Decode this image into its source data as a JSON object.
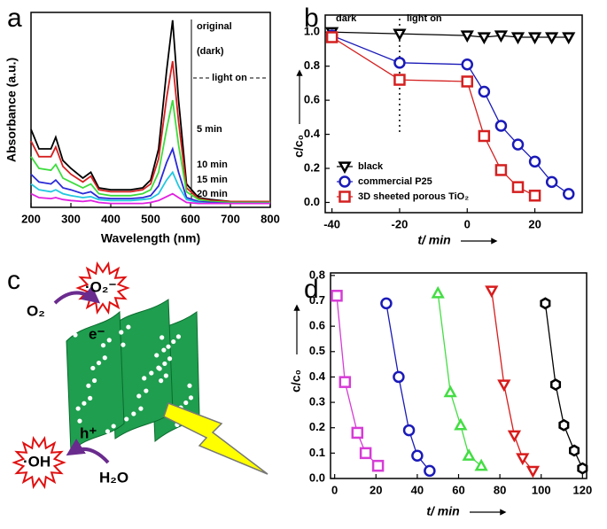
{
  "chart_data": [
    {
      "type": "line",
      "panel": "a",
      "x_label": "Wavelength (nm)",
      "y_label": "Absorbance (a.u.)",
      "x": [
        200,
        220,
        250,
        262,
        280,
        300,
        330,
        350,
        370,
        400,
        450,
        480,
        500,
        520,
        540,
        555,
        570,
        590,
        620,
        650,
        700,
        750,
        800
      ],
      "xlim": [
        200,
        800
      ],
      "xticks": [
        200,
        300,
        400,
        500,
        600,
        700,
        800
      ],
      "ylim": [
        0,
        1
      ],
      "annotation": "light on",
      "series": [
        {
          "name": "original",
          "color": "#000000",
          "values": [
            0.4,
            0.3,
            0.3,
            0.36,
            0.24,
            0.2,
            0.15,
            0.18,
            0.1,
            0.09,
            0.09,
            0.1,
            0.14,
            0.3,
            0.7,
            0.96,
            0.55,
            0.12,
            0.05,
            0.04,
            0.03,
            0.03,
            0.03
          ]
        },
        {
          "name": "(dark)",
          "color": "#d62020",
          "values": [
            0.34,
            0.26,
            0.26,
            0.31,
            0.21,
            0.17,
            0.13,
            0.16,
            0.09,
            0.08,
            0.08,
            0.09,
            0.12,
            0.25,
            0.56,
            0.75,
            0.44,
            0.1,
            0.045,
            0.035,
            0.03,
            0.03,
            0.03
          ]
        },
        {
          "name": "5 min",
          "color": "#3ddc3d",
          "values": [
            0.26,
            0.2,
            0.19,
            0.22,
            0.15,
            0.13,
            0.1,
            0.12,
            0.07,
            0.06,
            0.06,
            0.07,
            0.09,
            0.18,
            0.4,
            0.55,
            0.32,
            0.08,
            0.04,
            0.03,
            0.025,
            0.025,
            0.025
          ]
        },
        {
          "name": "10 min",
          "color": "#2a2ad8",
          "values": [
            0.17,
            0.13,
            0.12,
            0.14,
            0.1,
            0.09,
            0.07,
            0.08,
            0.05,
            0.045,
            0.045,
            0.05,
            0.06,
            0.11,
            0.23,
            0.3,
            0.18,
            0.05,
            0.03,
            0.025,
            0.02,
            0.02,
            0.02
          ]
        },
        {
          "name": "15 min",
          "color": "#22c8e0",
          "values": [
            0.12,
            0.09,
            0.08,
            0.09,
            0.07,
            0.06,
            0.05,
            0.055,
            0.04,
            0.035,
            0.035,
            0.04,
            0.045,
            0.07,
            0.14,
            0.18,
            0.11,
            0.04,
            0.025,
            0.02,
            0.02,
            0.02,
            0.02
          ]
        },
        {
          "name": "20 min",
          "color": "#e020e0",
          "values": [
            0.07,
            0.05,
            0.045,
            0.05,
            0.04,
            0.035,
            0.03,
            0.035,
            0.025,
            0.02,
            0.02,
            0.02,
            0.025,
            0.035,
            0.055,
            0.07,
            0.05,
            0.025,
            0.02,
            0.02,
            0.02,
            0.02,
            0.02
          ]
        }
      ]
    },
    {
      "type": "line",
      "panel": "b",
      "x_label": "t/ min",
      "y_label": "c/c₀",
      "xlim": [
        -42,
        34
      ],
      "xticks": [
        -40,
        -20,
        0,
        20
      ],
      "ylim": [
        -0.06,
        1.1
      ],
      "yticks": [
        {
          "value": 0,
          "label": "0.0"
        },
        0.2,
        0.4,
        0.6,
        0.8,
        {
          "value": 1,
          "label": "1.0"
        }
      ],
      "annotations": [
        "dark",
        "light on"
      ],
      "divider_x": -20,
      "legend": true,
      "series": [
        {
          "name": "black",
          "color": "#000000",
          "marker": "triangle-down",
          "x": [
            -40,
            -20,
            0,
            5,
            10,
            15,
            20,
            25,
            30
          ],
          "values": [
            1.0,
            0.99,
            0.98,
            0.97,
            0.98,
            0.97,
            0.97,
            0.97,
            0.97
          ]
        },
        {
          "name": "commercial P25",
          "color": "#1a1ab8",
          "marker": "circle",
          "x": [
            -40,
            -20,
            0,
            5,
            10,
            15,
            20,
            25,
            30
          ],
          "values": [
            0.98,
            0.82,
            0.81,
            0.65,
            0.45,
            0.34,
            0.24,
            0.12,
            0.05
          ]
        },
        {
          "name": "3D sheeted porous TiO₂",
          "color": "#d42020",
          "marker": "square",
          "x": [
            -40,
            -20,
            0,
            5,
            10,
            15,
            20
          ],
          "values": [
            0.97,
            0.72,
            0.71,
            0.39,
            0.19,
            0.09,
            0.04
          ]
        }
      ]
    },
    {
      "type": "line",
      "panel": "d",
      "x_label": "t/ min",
      "y_label": "c/c₀",
      "xlim": [
        -2,
        122
      ],
      "xticks": [
        0,
        20,
        40,
        60,
        80,
        100,
        120
      ],
      "ylim": [
        0,
        0.81
      ],
      "yticks": [
        {
          "value": 0,
          "label": "0.0"
        },
        0.1,
        0.2,
        0.3,
        0.4,
        0.5,
        0.6,
        0.7,
        0.8
      ],
      "series": [
        {
          "color": "#d63cd6",
          "marker": "square",
          "x": [
            1,
            5,
            11,
            15,
            21
          ],
          "values": [
            0.72,
            0.38,
            0.18,
            0.1,
            0.05
          ]
        },
        {
          "color": "#1a1ab8",
          "marker": "circle",
          "x": [
            25,
            31,
            36,
            40,
            46
          ],
          "values": [
            0.69,
            0.4,
            0.19,
            0.09,
            0.03
          ]
        },
        {
          "color": "#44dd44",
          "marker": "triangle",
          "x": [
            50,
            56,
            61,
            65,
            71
          ],
          "values": [
            0.73,
            0.34,
            0.21,
            0.09,
            0.05
          ]
        },
        {
          "color": "#d81c1c",
          "marker": "triangle-down",
          "x": [
            76,
            82,
            87,
            91,
            96
          ],
          "values": [
            0.74,
            0.37,
            0.17,
            0.08,
            0.03
          ]
        },
        {
          "color": "#000000",
          "marker": "hexagon",
          "x": [
            102,
            107,
            111,
            116,
            120
          ],
          "values": [
            0.69,
            0.37,
            0.21,
            0.11,
            0.04
          ]
        }
      ]
    }
  ],
  "diagram": {
    "panel": "c",
    "labels": {
      "oxygen": "O₂",
      "superoxide": "·O₂⁻",
      "electron": "e⁻",
      "hole": "h⁺",
      "hydroxyl": "·OH",
      "water": "H₂O"
    }
  }
}
